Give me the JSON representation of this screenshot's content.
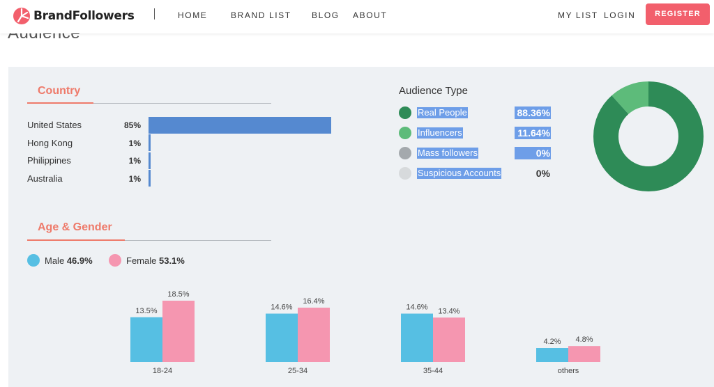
{
  "nav": {
    "brand": "BrandFollowers",
    "links": [
      "HOME",
      "BRAND LIST",
      "BLOG",
      "ABOUT"
    ],
    "my_list": "MY LIST",
    "login": "LOGIN",
    "register": "REGISTER"
  },
  "ghost_heading": "Audience",
  "colors": {
    "brand_red": "#f25f6c",
    "section_title": "#ee7a6a",
    "country_bar": "#5589d0",
    "real_people": "#2e8b57",
    "influencers": "#5dbb7a",
    "mass_followers": "#a4a9ad",
    "suspicious": "#d7dadc",
    "male": "#56bfe3",
    "female": "#f596b0"
  },
  "country": {
    "title": "Country",
    "rows": [
      {
        "name": "United States",
        "pct_label": "85%",
        "value": 85
      },
      {
        "name": "Hong Kong",
        "pct_label": "1%",
        "value": 1
      },
      {
        "name": "Philippines",
        "pct_label": "1%",
        "value": 1
      },
      {
        "name": "Australia",
        "pct_label": "1%",
        "value": 1
      }
    ]
  },
  "audience_type": {
    "title": "Audience Type",
    "items": [
      {
        "label": "Real People",
        "pct_label": "88.36%",
        "value": 88.36,
        "color": "#2e8b57"
      },
      {
        "label": "Influencers",
        "pct_label": "11.64%",
        "value": 11.64,
        "color": "#5dbb7a"
      },
      {
        "label": "Mass followers",
        "pct_label": "0%",
        "value": 0,
        "color": "#a4a9ad"
      },
      {
        "label": "Suspicious Accounts",
        "pct_label": "0%",
        "value": 0,
        "color": "#d7dadc"
      }
    ]
  },
  "age_gender": {
    "title": "Age & Gender",
    "male_label": "Male",
    "male_pct": "46.9%",
    "female_label": "Female",
    "female_pct": "53.1%"
  },
  "chart_data": {
    "type": "bar",
    "title": "",
    "xlabel": "",
    "ylabel": "",
    "categories": [
      "18-24",
      "25-34",
      "35-44",
      "others"
    ],
    "series": [
      {
        "name": "Male",
        "values": [
          13.5,
          14.6,
          14.6,
          4.2
        ],
        "labels": [
          "13.5%",
          "14.6%",
          "14.6%",
          "4.2%"
        ],
        "color": "#56bfe3"
      },
      {
        "name": "Female",
        "values": [
          18.5,
          16.4,
          13.4,
          4.8
        ],
        "labels": [
          "18.5%",
          "16.4%",
          "13.4%",
          "4.8%"
        ],
        "color": "#f596b0"
      }
    ],
    "ylim": [
      0,
      20
    ],
    "grid": false
  }
}
